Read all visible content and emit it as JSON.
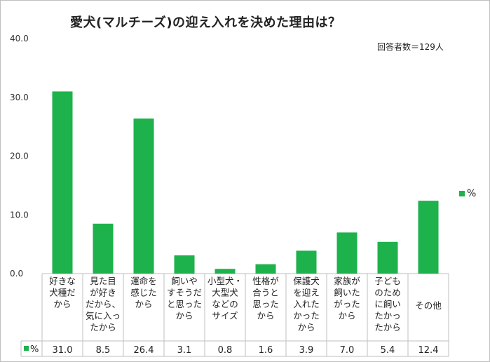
{
  "title": "愛犬(マルチーズ)の迎え入れを決めた理由は？",
  "note": "回答者数＝129人",
  "accent": "#1db24b",
  "chart_data": {
    "type": "bar",
    "categories": [
      [
        "好きな",
        "犬種だ",
        "から"
      ],
      [
        "見た目",
        "が好き",
        "だから、",
        "気に入っ",
        "たから"
      ],
      [
        "運命を",
        "感じた",
        "から"
      ],
      [
        "飼いや",
        "すそうだ",
        "と思った",
        "から"
      ],
      [
        "小型犬・",
        "大型犬",
        "などの",
        "サイズ"
      ],
      [
        "性格が",
        "合うと",
        "思った",
        "から"
      ],
      [
        "保護犬",
        "を迎え",
        "入れた",
        "かった",
        "から"
      ],
      [
        "家族が",
        "飼いた",
        "がった",
        "から"
      ],
      [
        "子ども",
        "のため",
        "に飼い",
        "たかっ",
        "たから"
      ],
      [
        "その他"
      ]
    ],
    "series": [
      {
        "name": "%",
        "values": [
          31.0,
          8.5,
          26.4,
          3.1,
          0.8,
          1.6,
          3.9,
          7.0,
          5.4,
          12.4
        ]
      }
    ],
    "value_labels": [
      "31.0",
      "8.5",
      "26.4",
      "3.1",
      "0.8",
      "1.6",
      "3.9",
      "7.0",
      "5.4",
      "12.4"
    ],
    "yticks": [
      "0.0",
      "10.0",
      "20.0",
      "30.0",
      "40.0"
    ],
    "ylim": [
      0,
      40
    ],
    "legend": {
      "label": "%",
      "position": "right"
    },
    "table_row_label": "%"
  }
}
